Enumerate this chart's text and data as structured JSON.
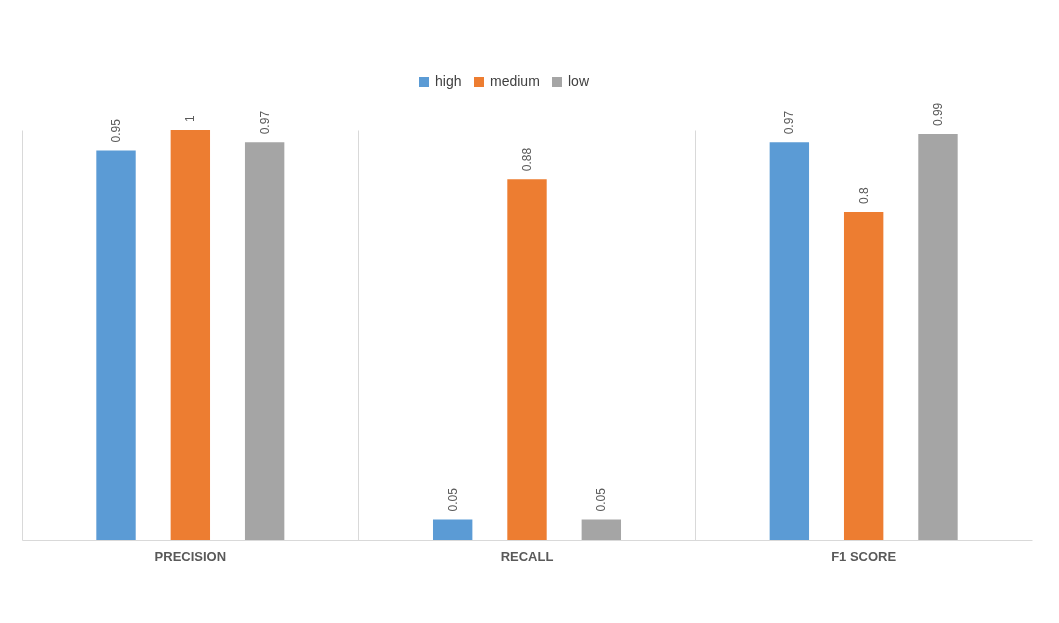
{
  "chart_data": {
    "type": "bar",
    "categories": [
      "PRECISION",
      "RECALL",
      "F1 SCORE"
    ],
    "series": [
      {
        "name": "high",
        "color": "#5b9bd5",
        "values": [
          0.95,
          0.05,
          0.97
        ]
      },
      {
        "name": "medium",
        "color": "#ed7d31",
        "values": [
          1,
          0.88,
          0.8
        ]
      },
      {
        "name": "low",
        "color": "#a5a5a5",
        "values": [
          0.97,
          0.05,
          0.99
        ]
      }
    ],
    "data_labels": true,
    "legend": "top",
    "grid": "x"
  }
}
